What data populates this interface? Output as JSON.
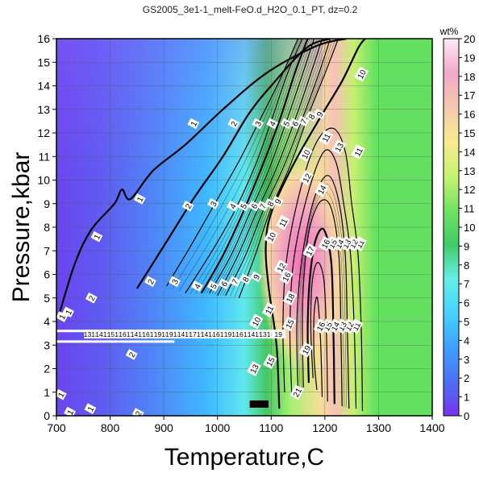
{
  "chart_data": {
    "type": "heatmap",
    "title": "GS2005_3e1-1_melt-FeO.d_H2O_0.1_PT, dz=0.2",
    "xlabel": "Temperature,C",
    "ylabel": "Pressure,kbar",
    "xlim": [
      700,
      1400
    ],
    "ylim": [
      0,
      16
    ],
    "xticks": [
      700,
      800,
      900,
      1000,
      1100,
      1200,
      1300,
      1400
    ],
    "yticks": [
      0,
      1,
      2,
      3,
      4,
      5,
      6,
      7,
      8,
      9,
      10,
      11,
      12,
      13,
      14,
      15,
      16
    ],
    "grid": true,
    "colorbar": {
      "unit": "wt%",
      "range": [
        0,
        20
      ],
      "ticks": [
        0,
        1,
        2,
        3,
        4,
        5,
        6,
        7,
        8,
        9,
        10,
        11,
        12,
        13,
        14,
        15,
        16,
        17,
        18,
        19,
        20
      ],
      "colors": [
        "#7733ee",
        "#4d70f5",
        "#3fa0ff",
        "#46d3ff",
        "#66eee6",
        "#3fcb66",
        "#72e264",
        "#c8f26e",
        "#f7eb8e",
        "#f3c8b0",
        "#f2a8c6",
        "#fbeafa"
      ]
    },
    "plateau": {
      "x_start": 1300,
      "x_end": 1400,
      "value": 11
    },
    "contours": [
      {
        "level": "1",
        "points": [
          [
            705,
            4.3
          ],
          [
            735,
            6.5
          ],
          [
            765,
            7.9
          ],
          [
            808,
            9.0
          ],
          [
            822,
            9.6
          ],
          [
            838,
            9.2
          ],
          [
            880,
            10.4
          ],
          [
            940,
            11.5
          ],
          [
            1015,
            13.1
          ],
          [
            1095,
            14.6
          ],
          [
            1185,
            15.7
          ],
          [
            1240,
            16.0
          ]
        ]
      },
      {
        "level": "2",
        "points": [
          [
            850,
            5.4
          ],
          [
            900,
            7.2
          ],
          [
            955,
            9.2
          ],
          [
            1010,
            11.0
          ],
          [
            1058,
            12.8
          ],
          [
            1100,
            14.0
          ],
          [
            1165,
            15.6
          ],
          [
            1210,
            16.0
          ]
        ]
      },
      {
        "level": "3",
        "points": [
          [
            905,
            5.5
          ],
          [
            950,
            7.2
          ],
          [
            995,
            9.0
          ],
          [
            1040,
            10.8
          ],
          [
            1080,
            12.6
          ],
          [
            1115,
            14.2
          ],
          [
            1150,
            16.0
          ]
        ]
      },
      {
        "level": "4",
        "points": [
          [
            940,
            5.2
          ],
          [
            990,
            7.0
          ],
          [
            1030,
            8.6
          ],
          [
            1070,
            10.6
          ],
          [
            1100,
            12.5
          ],
          [
            1130,
            14.5
          ],
          [
            1158,
            16.0
          ]
        ]
      },
      {
        "level": "5",
        "points": [
          [
            970,
            5.2
          ],
          [
            1010,
            6.8
          ],
          [
            1045,
            8.5
          ],
          [
            1080,
            10.4
          ],
          [
            1115,
            12.5
          ],
          [
            1145,
            14.6
          ],
          [
            1168,
            16.0
          ]
        ]
      },
      {
        "level": "6",
        "points": [
          [
            985,
            5.2
          ],
          [
            1025,
            6.8
          ],
          [
            1058,
            8.5
          ],
          [
            1095,
            10.4
          ],
          [
            1130,
            12.6
          ],
          [
            1160,
            14.6
          ],
          [
            1180,
            16.0
          ]
        ]
      },
      {
        "level": "7",
        "points": [
          [
            1000,
            5.1
          ],
          [
            1038,
            6.8
          ],
          [
            1072,
            8.6
          ],
          [
            1108,
            10.4
          ],
          [
            1145,
            12.6
          ],
          [
            1175,
            14.6
          ],
          [
            1195,
            16.0
          ]
        ]
      },
      {
        "level": "8",
        "points": [
          [
            1015,
            5.1
          ],
          [
            1052,
            6.8
          ],
          [
            1085,
            8.7
          ],
          [
            1122,
            10.5
          ],
          [
            1158,
            12.6
          ],
          [
            1190,
            14.6
          ],
          [
            1210,
            16.0
          ]
        ]
      },
      {
        "level": "9",
        "points": [
          [
            1040,
            5.0
          ],
          [
            1070,
            6.8
          ],
          [
            1098,
            8.7
          ],
          [
            1135,
            10.6
          ],
          [
            1170,
            12.8
          ],
          [
            1205,
            14.8
          ],
          [
            1225,
            16.0
          ]
        ]
      },
      {
        "level": "10",
        "points": [
          [
            1115,
            0.3
          ],
          [
            1110,
            3.0
          ],
          [
            1095,
            5.5
          ],
          [
            1090,
            7.2
          ],
          [
            1100,
            8.6
          ],
          [
            1140,
            10.6
          ],
          [
            1190,
            12.6
          ],
          [
            1232,
            14.2
          ],
          [
            1262,
            15.6
          ],
          [
            1275,
            16.0
          ]
        ]
      },
      {
        "level": "11",
        "points": [
          [
            1270,
            0.2
          ],
          [
            1268,
            3.5
          ],
          [
            1262,
            6.8
          ],
          [
            1250,
            9.0
          ],
          [
            1238,
            11.2
          ],
          [
            1215,
            12.2
          ],
          [
            1182,
            11.5
          ],
          [
            1150,
            9.2
          ],
          [
            1128,
            6.5
          ],
          [
            1122,
            3.8
          ],
          [
            1125,
            1.0
          ]
        ]
      },
      {
        "level": "12",
        "points": [
          [
            1258,
            0.3
          ],
          [
            1255,
            3.5
          ],
          [
            1248,
            6.8
          ],
          [
            1235,
            9.0
          ],
          [
            1220,
            10.8
          ],
          [
            1198,
            11.2
          ],
          [
            1168,
            9.4
          ],
          [
            1142,
            6.6
          ],
          [
            1135,
            3.8
          ],
          [
            1138,
            1.0
          ]
        ]
      },
      {
        "level": "13",
        "points": [
          [
            1245,
            0.3
          ],
          [
            1242,
            3.5
          ],
          [
            1238,
            6.8
          ],
          [
            1225,
            9.2
          ],
          [
            1205,
            10.2
          ],
          [
            1180,
            9.2
          ],
          [
            1158,
            6.8
          ],
          [
            1148,
            4.0
          ],
          [
            1150,
            1.0
          ]
        ]
      },
      {
        "level": "14",
        "points": [
          [
            1232,
            0.4
          ],
          [
            1230,
            3.5
          ],
          [
            1226,
            6.8
          ],
          [
            1212,
            8.8
          ],
          [
            1192,
            9.1
          ],
          [
            1172,
            8.0
          ],
          [
            1162,
            6.2
          ],
          [
            1158,
            4.0
          ],
          [
            1160,
            1.2
          ]
        ]
      },
      {
        "level": "15",
        "points": [
          [
            1218,
            0.5
          ],
          [
            1216,
            3.5
          ],
          [
            1212,
            6.5
          ],
          [
            1198,
            7.9
          ],
          [
            1182,
            7.4
          ],
          [
            1172,
            5.8
          ],
          [
            1168,
            3.8
          ],
          [
            1170,
            1.4
          ]
        ]
      },
      {
        "level": "16",
        "points": [
          [
            1205,
            0.6
          ],
          [
            1203,
            3.4
          ],
          [
            1198,
            5.8
          ],
          [
            1186,
            6.5
          ],
          [
            1176,
            5.6
          ],
          [
            1174,
            3.6
          ],
          [
            1178,
            1.6
          ]
        ]
      },
      {
        "level": "17",
        "points": [
          [
            1195,
            0.8
          ],
          [
            1192,
            3.2
          ],
          [
            1186,
            5.0
          ],
          [
            1180,
            4.3
          ],
          [
            1180,
            2.5
          ],
          [
            1185,
            1.1
          ]
        ]
      }
    ],
    "contour_labels": [
      {
        "text": "1",
        "x": 710,
        "y": 4.2
      },
      {
        "text": "1",
        "x": 775,
        "y": 7.6
      },
      {
        "text": "1",
        "x": 855,
        "y": 9.2
      },
      {
        "text": "1",
        "x": 955,
        "y": 12.4
      },
      {
        "text": "1",
        "x": 708,
        "y": 0.9
      },
      {
        "text": "1",
        "x": 763,
        "y": 0.3
      },
      {
        "text": "1",
        "x": 725,
        "y": 0.15
      },
      {
        "text": "1",
        "x": 722,
        "y": 4.4
      },
      {
        "text": "2",
        "x": 875,
        "y": 5.7
      },
      {
        "text": "2",
        "x": 945,
        "y": 8.9
      },
      {
        "text": "2",
        "x": 1030,
        "y": 12.4
      },
      {
        "text": "2",
        "x": 765,
        "y": 5.0
      },
      {
        "text": "2",
        "x": 840,
        "y": 2.6
      },
      {
        "text": "2",
        "x": 852,
        "y": 0.1
      },
      {
        "text": "3",
        "x": 920,
        "y": 5.7
      },
      {
        "text": "3",
        "x": 992,
        "y": 9.0
      },
      {
        "text": "3",
        "x": 1075,
        "y": 12.4
      },
      {
        "text": "4",
        "x": 962,
        "y": 5.5
      },
      {
        "text": "4",
        "x": 1028,
        "y": 8.9
      },
      {
        "text": "4",
        "x": 1102,
        "y": 12.4
      },
      {
        "text": "5",
        "x": 992,
        "y": 5.5
      },
      {
        "text": "5",
        "x": 1048,
        "y": 8.9
      },
      {
        "text": "5",
        "x": 1128,
        "y": 12.4
      },
      {
        "text": "6",
        "x": 1012,
        "y": 5.6
      },
      {
        "text": "6",
        "x": 1068,
        "y": 8.9
      },
      {
        "text": "6",
        "x": 1144,
        "y": 12.4
      },
      {
        "text": "7",
        "x": 1032,
        "y": 5.7
      },
      {
        "text": "7",
        "x": 1084,
        "y": 8.9
      },
      {
        "text": "7",
        "x": 1160,
        "y": 12.5
      },
      {
        "text": "8",
        "x": 1052,
        "y": 5.8
      },
      {
        "text": "8",
        "x": 1098,
        "y": 9.0
      },
      {
        "text": "8",
        "x": 1175,
        "y": 12.7
      },
      {
        "text": "9",
        "x": 1072,
        "y": 5.9
      },
      {
        "text": "9",
        "x": 1112,
        "y": 9.1
      },
      {
        "text": "9",
        "x": 1190,
        "y": 12.8
      },
      {
        "text": "10",
        "x": 1072,
        "y": 4.0
      },
      {
        "text": "10",
        "x": 1100,
        "y": 7.6
      },
      {
        "text": "10",
        "x": 1164,
        "y": 11.1
      },
      {
        "text": "10",
        "x": 1268,
        "y": 14.5
      },
      {
        "text": "11",
        "x": 1096,
        "y": 4.5
      },
      {
        "text": "11",
        "x": 1122,
        "y": 8.2
      },
      {
        "text": "11",
        "x": 1202,
        "y": 11.8
      },
      {
        "text": "11",
        "x": 1262,
        "y": 11.2
      },
      {
        "text": "11",
        "x": 1265,
        "y": 7.3
      },
      {
        "text": "11",
        "x": 1258,
        "y": 3.8
      },
      {
        "text": "12",
        "x": 1118,
        "y": 6.3
      },
      {
        "text": "12",
        "x": 1166,
        "y": 10.1
      },
      {
        "text": "12",
        "x": 1253,
        "y": 7.3
      },
      {
        "text": "12",
        "x": 1245,
        "y": 3.8
      },
      {
        "text": "13",
        "x": 1226,
        "y": 11.4
      },
      {
        "text": "13",
        "x": 1240,
        "y": 7.3
      },
      {
        "text": "13",
        "x": 1232,
        "y": 3.8
      },
      {
        "text": "13",
        "x": 1068,
        "y": 2.0
      },
      {
        "text": "14",
        "x": 1194,
        "y": 9.6
      },
      {
        "text": "14",
        "x": 1227,
        "y": 7.3
      },
      {
        "text": "14",
        "x": 1219,
        "y": 3.8
      },
      {
        "text": "15",
        "x": 1214,
        "y": 7.3
      },
      {
        "text": "15",
        "x": 1205,
        "y": 3.8
      },
      {
        "text": "15",
        "x": 1134,
        "y": 3.9
      },
      {
        "text": "16",
        "x": 1201,
        "y": 7.3
      },
      {
        "text": "16",
        "x": 1192,
        "y": 3.8
      },
      {
        "text": "16",
        "x": 1128,
        "y": 5.9
      },
      {
        "text": "17",
        "x": 1172,
        "y": 7.0
      },
      {
        "text": "18",
        "x": 1135,
        "y": 5.0
      },
      {
        "text": "19",
        "x": 1165,
        "y": 2.8
      },
      {
        "text": "21",
        "x": 1148,
        "y": 1.0
      },
      {
        "text": "15",
        "x": 1098,
        "y": 2.3
      }
    ],
    "artifact_band_labels": [
      "1318",
      "1419",
      "1518",
      "1617",
      "1415",
      "1617",
      "1918",
      "1914",
      "1415",
      "1719",
      "1414",
      "1617",
      "1918",
      "1612",
      "1415",
      "1318",
      "19"
    ]
  }
}
